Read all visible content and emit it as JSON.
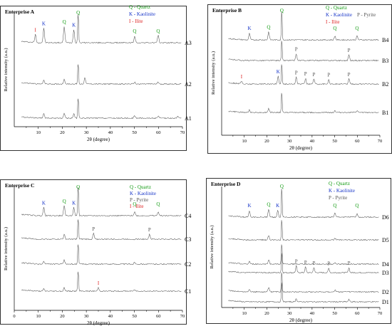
{
  "colors": {
    "quartz": "#109a10",
    "kaolinite": "#1432c8",
    "pyrite": "#555555",
    "illite": "#dd1e1e"
  },
  "chart_data": [
    {
      "type": "line",
      "title": "Enterprise A",
      "xlabel": "2θ (degree)",
      "ylabel": "Relative intensity (a.u.)",
      "xlim": [
        0,
        70
      ],
      "xticks": [
        10,
        20,
        30,
        40,
        50,
        60,
        70
      ],
      "legend": {
        "position": "top-right",
        "entries": [
          {
            "code": "Q",
            "text": "Q - Quartz",
            "mineral": "quartz"
          },
          {
            "code": "K",
            "text": "K - Kaolinite",
            "mineral": "kaolinite"
          },
          {
            "code": "I",
            "text": "I - Ilite",
            "mineral": "illite"
          }
        ]
      },
      "series": [
        {
          "name": "A3",
          "peaks": [
            [
              8.8,
              0.25
            ],
            [
              12.3,
              0.45
            ],
            [
              20.8,
              0.5
            ],
            [
              24.8,
              0.4
            ],
            [
              26.6,
              1.0
            ],
            [
              50.1,
              0.2
            ],
            [
              59.9,
              0.22
            ]
          ]
        },
        {
          "name": "A2",
          "peaks": [
            [
              12.3,
              0.2
            ],
            [
              20.8,
              0.22
            ],
            [
              26.6,
              1.0
            ],
            [
              29.4,
              0.3
            ],
            [
              50.1,
              0.08
            ],
            [
              59.9,
              0.08
            ]
          ]
        },
        {
          "name": "A1",
          "peaks": [
            [
              12.3,
              0.22
            ],
            [
              20.8,
              0.22
            ],
            [
              24.8,
              0.2
            ],
            [
              26.6,
              1.0
            ],
            [
              50.1,
              0.1
            ],
            [
              59.9,
              0.1
            ],
            [
              68.1,
              0.08
            ]
          ]
        }
      ],
      "annotations": [
        {
          "label": "I",
          "x": 8.8,
          "mineral": "illite"
        },
        {
          "label": "K",
          "x": 12.3,
          "mineral": "kaolinite"
        },
        {
          "label": "Q",
          "x": 20.8,
          "mineral": "quartz"
        },
        {
          "label": "K",
          "x": 24.8,
          "mineral": "kaolinite"
        },
        {
          "label": "Q",
          "x": 26.6,
          "mineral": "quartz"
        },
        {
          "label": "Q",
          "x": 50.1,
          "mineral": "quartz"
        },
        {
          "label": "Q",
          "x": 59.9,
          "mineral": "quartz"
        }
      ]
    },
    {
      "type": "line",
      "title": "Enterprise B",
      "xlabel": "2θ (degree)",
      "ylabel": "Relative intensity (a.u.)",
      "xlim": [
        0,
        70
      ],
      "xticks": [
        10,
        20,
        30,
        40,
        50,
        60,
        70
      ],
      "legend": {
        "position": "top-right",
        "entries": [
          {
            "code": "Q",
            "text": "Q - Quartz",
            "mineral": "quartz"
          },
          {
            "code": "P",
            "text": "P - Pyrite",
            "mineral": "pyrite"
          },
          {
            "code": "K",
            "text": "K - Kaolinite",
            "mineral": "kaolinite"
          },
          {
            "code": "I",
            "text": "I - Ilite",
            "mineral": "illite"
          }
        ]
      },
      "series": [
        {
          "name": "B4",
          "peaks": [
            [
              12.3,
              0.2
            ],
            [
              20.8,
              0.25
            ],
            [
              26.6,
              1.0
            ],
            [
              50.1,
              0.12
            ],
            [
              59.9,
              0.12
            ]
          ]
        },
        {
          "name": "B3",
          "peaks": [
            [
              26.6,
              1.0
            ],
            [
              33.0,
              0.3
            ],
            [
              56.3,
              0.25
            ]
          ]
        },
        {
          "name": "B2",
          "peaks": [
            [
              8.8,
              0.12
            ],
            [
              25.0,
              0.35
            ],
            [
              26.6,
              1.0
            ],
            [
              33.0,
              0.3
            ],
            [
              37.1,
              0.25
            ],
            [
              40.8,
              0.22
            ],
            [
              47.4,
              0.2
            ],
            [
              56.3,
              0.22
            ]
          ]
        },
        {
          "name": "B1",
          "peaks": [
            [
              12.3,
              0.12
            ],
            [
              20.8,
              0.18
            ],
            [
              26.6,
              1.0
            ],
            [
              50.1,
              0.08
            ],
            [
              59.9,
              0.08
            ]
          ]
        }
      ],
      "annotations": [
        {
          "label": "K",
          "x": 12.3,
          "mineral": "kaolinite"
        },
        {
          "label": "Q",
          "x": 20.8,
          "mineral": "quartz"
        },
        {
          "label": "Q",
          "x": 26.6,
          "mineral": "quartz"
        },
        {
          "label": "Q",
          "x": 50.1,
          "mineral": "quartz"
        },
        {
          "label": "Q",
          "x": 59.9,
          "mineral": "quartz"
        },
        {
          "label": "P",
          "x": 33.0,
          "mineral": "pyrite",
          "on": "B3"
        },
        {
          "label": "P",
          "x": 56.3,
          "mineral": "pyrite",
          "on": "B3"
        },
        {
          "label": "I",
          "x": 8.8,
          "mineral": "illite",
          "on": "B2"
        },
        {
          "label": "K",
          "x": 25.0,
          "mineral": "kaolinite",
          "on": "B2"
        },
        {
          "label": "P",
          "x": 33.0,
          "mineral": "pyrite",
          "on": "B2"
        },
        {
          "label": "P",
          "x": 37.1,
          "mineral": "pyrite",
          "on": "B2"
        },
        {
          "label": "P",
          "x": 40.8,
          "mineral": "pyrite",
          "on": "B2"
        },
        {
          "label": "P",
          "x": 47.4,
          "mineral": "pyrite",
          "on": "B2"
        },
        {
          "label": "P",
          "x": 56.3,
          "mineral": "pyrite",
          "on": "B2"
        }
      ]
    },
    {
      "type": "line",
      "title": "Enterprise C",
      "xlabel": "2θ (degree)",
      "ylabel": "Relative intensity (a.u.)",
      "xlim": [
        0,
        70
      ],
      "xticks": [
        0,
        10,
        20,
        30,
        40,
        50,
        60,
        70
      ],
      "legend": {
        "position": "top-right",
        "entries": [
          {
            "code": "Q",
            "text": "Q - Quartz",
            "mineral": "quartz"
          },
          {
            "code": "K",
            "text": "K - Kaolinite",
            "mineral": "kaolinite"
          },
          {
            "code": "P",
            "text": "P - Pyrite",
            "mineral": "pyrite"
          },
          {
            "code": "I",
            "text": "I - Ilite",
            "mineral": "illite"
          }
        ]
      },
      "series": [
        {
          "name": "C4",
          "peaks": [
            [
              12.3,
              0.25
            ],
            [
              20.8,
              0.3
            ],
            [
              24.8,
              0.25
            ],
            [
              26.6,
              1.0
            ],
            [
              50.1,
              0.12
            ],
            [
              59.9,
              0.12
            ]
          ]
        },
        {
          "name": "C3",
          "peaks": [
            [
              20.8,
              0.2
            ],
            [
              26.6,
              1.0
            ],
            [
              33.0,
              0.25
            ],
            [
              56.3,
              0.22
            ]
          ]
        },
        {
          "name": "C2",
          "peaks": [
            [
              12.3,
              0.12
            ],
            [
              20.8,
              0.18
            ],
            [
              26.6,
              1.0
            ],
            [
              50.1,
              0.08
            ]
          ]
        },
        {
          "name": "C1",
          "peaks": [
            [
              12.3,
              0.1
            ],
            [
              20.8,
              0.15
            ],
            [
              26.6,
              1.0
            ],
            [
              35.0,
              0.15
            ],
            [
              50.1,
              0.06
            ]
          ]
        }
      ],
      "annotations": [
        {
          "label": "K",
          "x": 12.3,
          "mineral": "kaolinite"
        },
        {
          "label": "Q",
          "x": 20.8,
          "mineral": "quartz"
        },
        {
          "label": "K",
          "x": 24.8,
          "mineral": "kaolinite"
        },
        {
          "label": "Q",
          "x": 26.6,
          "mineral": "quartz"
        },
        {
          "label": "Q",
          "x": 50.1,
          "mineral": "quartz"
        },
        {
          "label": "Q",
          "x": 59.9,
          "mineral": "quartz"
        },
        {
          "label": "P",
          "x": 33.0,
          "mineral": "pyrite",
          "on": "C3"
        },
        {
          "label": "P",
          "x": 56.3,
          "mineral": "pyrite",
          "on": "C3"
        },
        {
          "label": "I",
          "x": 35.0,
          "mineral": "illite",
          "on": "C1"
        }
      ]
    },
    {
      "type": "line",
      "title": "Enterprise D",
      "xlabel": "2θ (degree)",
      "ylabel": "Relative intensity (a.u.)",
      "xlim": [
        0,
        70
      ],
      "xticks": [
        10,
        20,
        30,
        40,
        50,
        60,
        70
      ],
      "legend": {
        "position": "top-right",
        "entries": [
          {
            "code": "Q",
            "text": "Q - Quartz",
            "mineral": "quartz"
          },
          {
            "code": "K",
            "text": "K - Kaolinite",
            "mineral": "kaolinite"
          },
          {
            "code": "P",
            "text": "P - Pyrite",
            "mineral": "pyrite"
          }
        ]
      },
      "series": [
        {
          "name": "D6",
          "peaks": [
            [
              12.3,
              0.2
            ],
            [
              20.8,
              0.25
            ],
            [
              24.8,
              0.2
            ],
            [
              26.6,
              1.0
            ],
            [
              50.1,
              0.12
            ],
            [
              59.9,
              0.12
            ]
          ]
        },
        {
          "name": "D5",
          "peaks": [
            [
              20.8,
              0.2
            ],
            [
              26.6,
              1.0
            ],
            [
              50.1,
              0.08
            ]
          ]
        },
        {
          "name": "D4",
          "peaks": [
            [
              12.3,
              0.12
            ],
            [
              20.8,
              0.2
            ],
            [
              26.6,
              1.0
            ],
            [
              50.1,
              0.08
            ]
          ]
        },
        {
          "name": "D3",
          "peaks": [
            [
              26.6,
              1.0
            ],
            [
              33.0,
              0.3
            ],
            [
              37.1,
              0.25
            ],
            [
              40.8,
              0.22
            ],
            [
              47.4,
              0.2
            ],
            [
              56.3,
              0.22
            ]
          ]
        },
        {
          "name": "D2",
          "peaks": [
            [
              12.3,
              0.12
            ],
            [
              20.8,
              0.2
            ],
            [
              26.6,
              1.0
            ],
            [
              50.1,
              0.08
            ]
          ]
        },
        {
          "name": "D1",
          "peaks": [
            [
              26.6,
              1.0
            ],
            [
              33.0,
              0.15
            ],
            [
              56.3,
              0.1
            ]
          ]
        }
      ],
      "annotations": [
        {
          "label": "K",
          "x": 12.3,
          "mineral": "kaolinite"
        },
        {
          "label": "Q",
          "x": 20.8,
          "mineral": "quartz"
        },
        {
          "label": "K",
          "x": 24.8,
          "mineral": "kaolinite"
        },
        {
          "label": "Q",
          "x": 26.6,
          "mineral": "quartz"
        },
        {
          "label": "Q",
          "x": 50.1,
          "mineral": "quartz"
        },
        {
          "label": "Q",
          "x": 59.9,
          "mineral": "quartz"
        },
        {
          "label": "P",
          "x": 33.0,
          "mineral": "pyrite",
          "on": "D3"
        },
        {
          "label": "P",
          "x": 37.1,
          "mineral": "pyrite",
          "on": "D3"
        },
        {
          "label": "P",
          "x": 40.8,
          "mineral": "pyrite",
          "on": "D3"
        },
        {
          "label": "P",
          "x": 47.4,
          "mineral": "pyrite",
          "on": "D3"
        },
        {
          "label": "P",
          "x": 56.3,
          "mineral": "pyrite",
          "on": "D3"
        }
      ]
    }
  ]
}
